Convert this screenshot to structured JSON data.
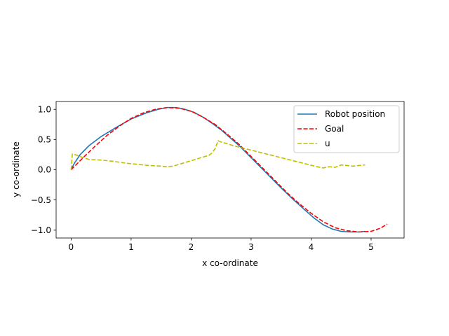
{
  "chart_data": {
    "type": "line",
    "title": "",
    "xlabel": "x co-ordinate",
    "ylabel": "y co-ordinate",
    "xlim": [
      -0.25,
      5.55
    ],
    "ylim": [
      -1.13,
      1.13
    ],
    "xticks": [
      0,
      1,
      2,
      3,
      4,
      5
    ],
    "yticks": [
      1.0,
      0.5,
      0.0,
      -0.5,
      -1.0
    ],
    "xtick_labels": [
      "0",
      "1",
      "2",
      "3",
      "4",
      "5"
    ],
    "ytick_labels": [
      "1.0",
      "0.5",
      "0.0",
      "−0.5",
      "−1.0"
    ],
    "grid": false,
    "legend_position": "top-right",
    "series": [
      {
        "name": "Robot position",
        "color": "#1f77b4",
        "style": "solid",
        "x": [
          0.0,
          0.05,
          0.15,
          0.3,
          0.5,
          0.75,
          1.0,
          1.25,
          1.45,
          1.6,
          1.75,
          1.9,
          2.05,
          2.2,
          2.35,
          2.5,
          2.65,
          2.8,
          2.95,
          3.1,
          3.3,
          3.5,
          3.7,
          3.9,
          4.05,
          4.2,
          4.35,
          4.5,
          4.65,
          4.8,
          4.9
        ],
        "y": [
          0.0,
          0.1,
          0.25,
          0.4,
          0.55,
          0.7,
          0.84,
          0.94,
          1.0,
          1.03,
          1.03,
          1.0,
          0.95,
          0.87,
          0.77,
          0.66,
          0.53,
          0.4,
          0.25,
          0.1,
          -0.1,
          -0.3,
          -0.49,
          -0.67,
          -0.8,
          -0.91,
          -0.98,
          -1.02,
          -1.03,
          -1.03,
          -1.02
        ]
      },
      {
        "name": "Goal",
        "color": "#ff0000",
        "style": "dashed",
        "x": [
          0.0,
          0.2,
          0.4,
          0.6,
          0.8,
          1.0,
          1.2,
          1.4,
          1.6,
          1.8,
          2.0,
          2.2,
          2.4,
          2.6,
          2.8,
          3.0,
          3.2,
          3.4,
          3.6,
          3.8,
          4.0,
          4.2,
          4.4,
          4.6,
          4.8,
          5.0,
          5.15,
          5.27
        ],
        "y": [
          0.0,
          0.2,
          0.39,
          0.57,
          0.72,
          0.85,
          0.94,
          1.0,
          1.03,
          1.02,
          0.97,
          0.87,
          0.75,
          0.59,
          0.42,
          0.22,
          0.02,
          -0.18,
          -0.38,
          -0.56,
          -0.72,
          -0.86,
          -0.96,
          -1.01,
          -1.03,
          -1.02,
          -0.97,
          -0.9
        ]
      },
      {
        "name": "u",
        "color": "#bfbf00",
        "style": "dashed",
        "x": [
          0.0,
          0.005,
          0.01,
          0.02,
          0.1,
          0.2,
          0.3,
          0.5,
          0.7,
          0.9,
          1.1,
          1.3,
          1.5,
          1.6,
          1.7,
          1.8,
          1.9,
          2.0,
          2.1,
          2.2,
          2.3,
          2.35,
          2.4,
          2.45,
          2.5,
          2.7,
          2.9,
          3.1,
          3.3,
          3.5,
          3.7,
          3.9,
          4.1,
          4.2,
          4.3,
          4.4,
          4.5,
          4.6,
          4.7,
          4.8,
          4.9
        ],
        "y": [
          0.0,
          0.05,
          0.12,
          0.26,
          0.24,
          0.2,
          0.17,
          0.16,
          0.14,
          0.11,
          0.09,
          0.07,
          0.06,
          0.05,
          0.06,
          0.09,
          0.12,
          0.15,
          0.18,
          0.21,
          0.24,
          0.28,
          0.35,
          0.48,
          0.46,
          0.4,
          0.35,
          0.3,
          0.25,
          0.2,
          0.15,
          0.1,
          0.05,
          0.03,
          0.05,
          0.04,
          0.08,
          0.07,
          0.06,
          0.07,
          0.08
        ]
      }
    ]
  }
}
